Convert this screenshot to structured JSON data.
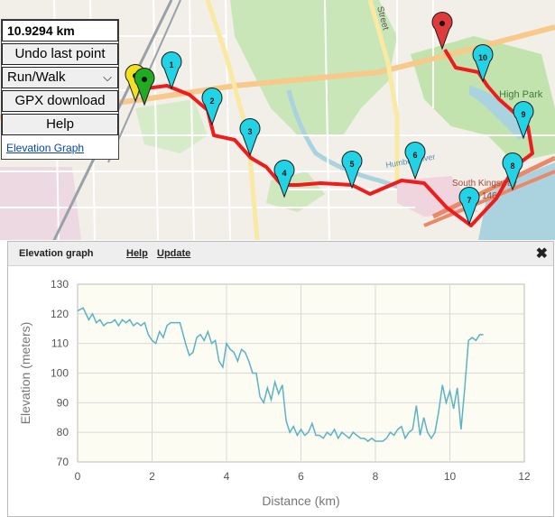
{
  "panel": {
    "distance": "10.9294 km",
    "undo_label": "Undo last point",
    "mode_selected": "Run/Walk",
    "gpx_label": "GPX download",
    "help_label": "Help",
    "elevation_link": "Elevation Graph"
  },
  "map": {
    "street_label": "Street",
    "park_label": "High Park",
    "river_label": "Humber River",
    "road_label_1": "South Kingsway",
    "road_label_2": "146",
    "markers": [
      "1",
      "2",
      "3",
      "4",
      "5",
      "6",
      "7",
      "8",
      "9",
      "10"
    ],
    "route_color": "#ee1c1c",
    "marker_color": "#22d3e6",
    "start_marker_color": "#22aa22",
    "end_marker_color": "#e03b3b"
  },
  "elevation_window": {
    "title": "Elevation graph",
    "help_link": "Help",
    "update_link": "Update",
    "close_icon": "close-icon"
  },
  "chart_data": {
    "type": "line",
    "xlabel": "Distance (km)",
    "ylabel": "Elevation (meters)",
    "xlim": [
      0,
      12
    ],
    "ylim": [
      70,
      130
    ],
    "xticks": [
      0,
      2,
      4,
      6,
      8,
      10,
      12
    ],
    "yticks": [
      70,
      80,
      90,
      100,
      110,
      120,
      130
    ],
    "grid": true,
    "series": [
      {
        "color": "#5ab3c4",
        "x": [
          0,
          0.15,
          0.3,
          0.4,
          0.5,
          0.6,
          0.7,
          0.8,
          0.9,
          1.0,
          1.1,
          1.2,
          1.3,
          1.4,
          1.5,
          1.6,
          1.7,
          1.8,
          1.9,
          2.0,
          2.1,
          2.2,
          2.3,
          2.4,
          2.5,
          2.6,
          2.75,
          2.9,
          3.0,
          3.1,
          3.2,
          3.3,
          3.4,
          3.5,
          3.6,
          3.7,
          3.8,
          3.9,
          4.0,
          4.1,
          4.2,
          4.3,
          4.4,
          4.5,
          4.6,
          4.7,
          4.8,
          4.9,
          5.0,
          5.1,
          5.2,
          5.3,
          5.4,
          5.5,
          5.6,
          5.7,
          5.8,
          5.9,
          6.0,
          6.1,
          6.2,
          6.3,
          6.4,
          6.5,
          6.6,
          6.7,
          6.8,
          6.9,
          7.0,
          7.1,
          7.2,
          7.3,
          7.4,
          7.5,
          7.6,
          7.7,
          7.8,
          7.9,
          8.0,
          8.1,
          8.2,
          8.3,
          8.4,
          8.5,
          8.6,
          8.7,
          8.8,
          8.9,
          9.0,
          9.1,
          9.2,
          9.3,
          9.4,
          9.5,
          9.6,
          9.7,
          9.8,
          9.9,
          10.0,
          10.1,
          10.2,
          10.3,
          10.4,
          10.5,
          10.6,
          10.7,
          10.8,
          10.9
        ],
        "values": [
          121,
          122,
          118,
          120,
          117,
          118,
          116,
          117,
          117,
          118,
          116,
          118,
          117,
          118,
          116,
          117,
          116,
          117,
          113,
          111,
          110,
          114,
          112,
          116,
          117,
          117,
          117,
          110,
          106,
          107,
          112,
          113,
          111,
          114,
          110,
          111,
          104,
          102,
          110,
          108,
          107,
          104,
          108,
          107,
          104,
          100,
          100,
          92,
          90,
          95,
          91,
          97,
          93,
          96,
          84,
          80,
          82,
          79,
          81,
          79,
          80,
          83,
          79,
          79,
          78,
          80,
          79,
          81,
          78,
          80,
          79,
          78,
          80,
          79,
          78,
          78,
          77,
          78,
          77,
          77,
          77,
          78,
          80,
          79,
          81,
          82,
          78,
          80,
          81,
          89,
          79,
          85,
          80,
          78,
          80,
          87,
          96,
          90,
          94,
          88,
          95,
          81,
          95,
          111,
          112,
          111,
          113,
          113
        ]
      }
    ]
  }
}
